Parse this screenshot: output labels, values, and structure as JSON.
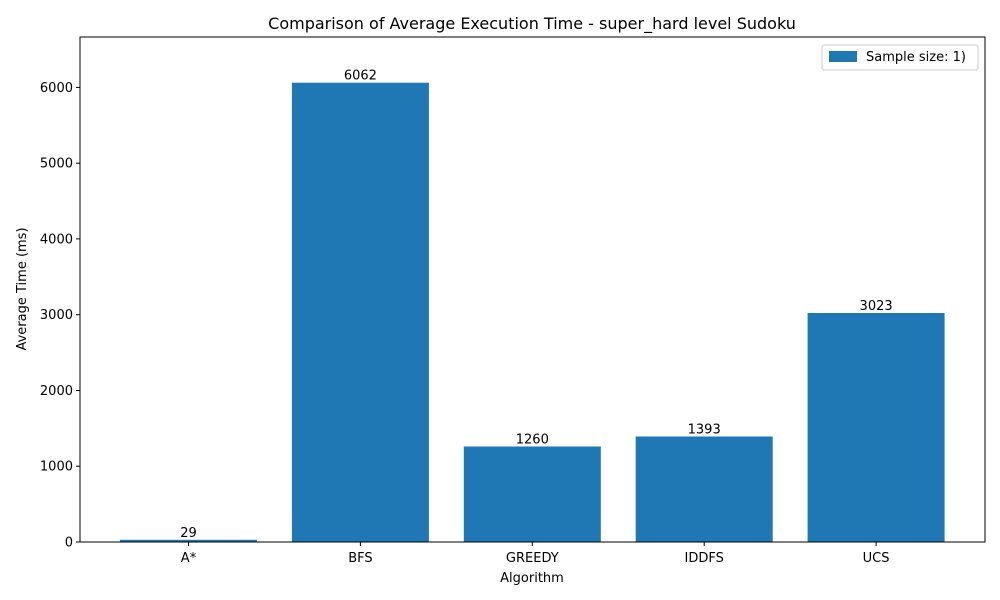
{
  "chart_data": {
    "type": "bar",
    "title": "Comparison of Average Execution Time - super_hard level Sudoku",
    "xlabel": "Algorithm",
    "ylabel": "Average Time (ms)",
    "categories": [
      "A*",
      "BFS",
      "GREEDY",
      "IDDFS",
      "UCS"
    ],
    "series": [
      {
        "name": "Sample size: 1)",
        "values": [
          29,
          6062,
          1260,
          1393,
          3023
        ],
        "color": "#1f77b4"
      }
    ],
    "data_labels": [
      "29",
      "6062",
      "1260",
      "1393",
      "3023"
    ],
    "yticks": [
      0,
      1000,
      2000,
      3000,
      4000,
      5000,
      6000
    ],
    "ytick_labels": [
      "0",
      "1000",
      "2000",
      "3000",
      "4000",
      "5000",
      "6000"
    ],
    "ylim": [
      0,
      6665
    ],
    "grid": false,
    "legend_position": "top-right"
  }
}
